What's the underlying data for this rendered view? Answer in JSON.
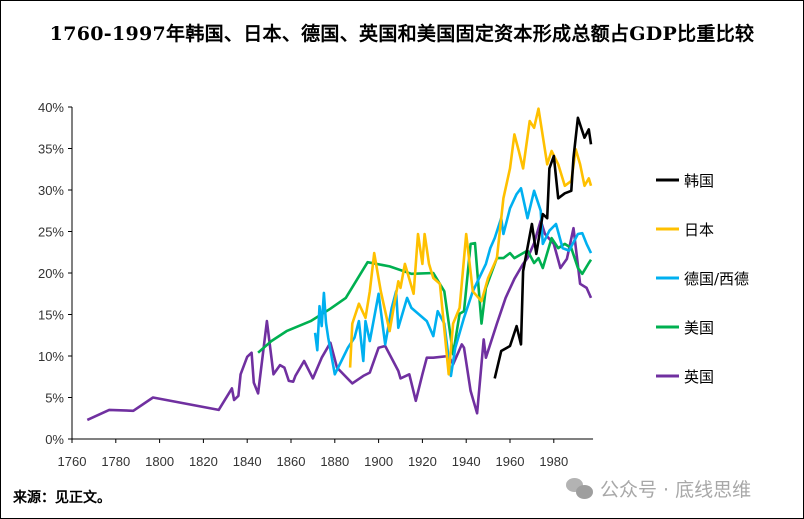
{
  "chart_data": {
    "type": "line",
    "title": "1760-1997年韩国、日本、德国、英国和美国固定资本形成总额占GDP比重比较",
    "xlabel": "",
    "ylabel": "",
    "xlim": [
      1760,
      1997
    ],
    "ylim": [
      0,
      40
    ],
    "x_ticks": [
      "1760",
      "1780",
      "1800",
      "1820",
      "1840",
      "1860",
      "1880",
      "1900",
      "1920",
      "1940",
      "1960",
      "1980"
    ],
    "y_ticks": [
      "0%",
      "5%",
      "10%",
      "15%",
      "20%",
      "25%",
      "30%",
      "35%",
      "40%"
    ],
    "grid": false,
    "legend_position": "right",
    "series": [
      {
        "name": "韩国",
        "color": "#000000",
        "points": [
          [
            1953,
            7.3
          ],
          [
            1956,
            10.6
          ],
          [
            1960,
            11.2
          ],
          [
            1963,
            13.6
          ],
          [
            1965,
            11.4
          ],
          [
            1966,
            20.2
          ],
          [
            1970,
            25.9
          ],
          [
            1972,
            22.3
          ],
          [
            1975,
            27.1
          ],
          [
            1977,
            26.6
          ],
          [
            1978,
            32.6
          ],
          [
            1980,
            34.1
          ],
          [
            1982,
            29.0
          ],
          [
            1985,
            29.6
          ],
          [
            1988,
            29.9
          ],
          [
            1989,
            33.9
          ],
          [
            1991,
            38.7
          ],
          [
            1994,
            36.3
          ],
          [
            1996,
            37.3
          ],
          [
            1997,
            35.5
          ]
        ]
      },
      {
        "name": "日本",
        "color": "#FFC000",
        "points": [
          [
            1887,
            8.6
          ],
          [
            1888,
            13.9
          ],
          [
            1891,
            16.3
          ],
          [
            1894,
            14.6
          ],
          [
            1896,
            17.8
          ],
          [
            1898,
            22.4
          ],
          [
            1901,
            17.8
          ],
          [
            1905,
            13.0
          ],
          [
            1909,
            19.0
          ],
          [
            1910,
            18.2
          ],
          [
            1912,
            21.1
          ],
          [
            1916,
            17.5
          ],
          [
            1918,
            24.7
          ],
          [
            1920,
            21.1
          ],
          [
            1921,
            24.7
          ],
          [
            1923,
            21.1
          ],
          [
            1925,
            19.4
          ],
          [
            1928,
            18.7
          ],
          [
            1932,
            7.8
          ],
          [
            1934,
            13.9
          ],
          [
            1937,
            15.8
          ],
          [
            1940,
            24.7
          ],
          [
            1943,
            17.8
          ],
          [
            1947,
            16.6
          ],
          [
            1950,
            19.4
          ],
          [
            1954,
            21.8
          ],
          [
            1957,
            29.0
          ],
          [
            1960,
            32.6
          ],
          [
            1962,
            36.7
          ],
          [
            1964,
            34.7
          ],
          [
            1966,
            32.6
          ],
          [
            1969,
            38.3
          ],
          [
            1971,
            37.5
          ],
          [
            1973,
            39.8
          ],
          [
            1977,
            33.1
          ],
          [
            1979,
            34.7
          ],
          [
            1982,
            33.1
          ],
          [
            1985,
            30.5
          ],
          [
            1988,
            31.1
          ],
          [
            1990,
            34.9
          ],
          [
            1992,
            33.1
          ],
          [
            1994,
            30.5
          ],
          [
            1996,
            31.4
          ],
          [
            1997,
            30.5
          ]
        ]
      },
      {
        "name": "德国/西德",
        "color": "#00B0F0",
        "points": [
          [
            1871,
            12.8
          ],
          [
            1872,
            10.7
          ],
          [
            1873,
            16.0
          ],
          [
            1874,
            13.6
          ],
          [
            1875,
            17.6
          ],
          [
            1876,
            14.0
          ],
          [
            1877,
            12.2
          ],
          [
            1880,
            7.8
          ],
          [
            1883,
            9.4
          ],
          [
            1886,
            11.0
          ],
          [
            1889,
            12.2
          ],
          [
            1891,
            14.2
          ],
          [
            1893,
            9.4
          ],
          [
            1894,
            14.2
          ],
          [
            1896,
            11.8
          ],
          [
            1900,
            17.5
          ],
          [
            1903,
            11.4
          ],
          [
            1906,
            15.8
          ],
          [
            1908,
            17.8
          ],
          [
            1909,
            13.4
          ],
          [
            1913,
            17.0
          ],
          [
            1915,
            15.8
          ],
          [
            1922,
            14.2
          ],
          [
            1925,
            12.4
          ],
          [
            1927,
            15.4
          ],
          [
            1930,
            13.9
          ],
          [
            1933,
            7.6
          ],
          [
            1935,
            11.0
          ],
          [
            1939,
            14.6
          ],
          [
            1943,
            17.8
          ],
          [
            1949,
            21.1
          ],
          [
            1951,
            23.0
          ],
          [
            1953,
            24.2
          ],
          [
            1956,
            26.6
          ],
          [
            1957,
            24.7
          ],
          [
            1960,
            27.8
          ],
          [
            1963,
            29.5
          ],
          [
            1965,
            30.2
          ],
          [
            1968,
            26.6
          ],
          [
            1971,
            29.9
          ],
          [
            1974,
            27.5
          ],
          [
            1975,
            23.5
          ],
          [
            1978,
            25.1
          ],
          [
            1981,
            25.9
          ],
          [
            1984,
            23.0
          ],
          [
            1987,
            22.7
          ],
          [
            1991,
            24.7
          ],
          [
            1993,
            24.8
          ],
          [
            1995,
            23.5
          ],
          [
            1997,
            22.4
          ]
        ]
      },
      {
        "name": "美国",
        "color": "#00B050",
        "points": [
          [
            1845,
            10.4
          ],
          [
            1851,
            11.8
          ],
          [
            1858,
            13.0
          ],
          [
            1869,
            14.2
          ],
          [
            1878,
            15.7
          ],
          [
            1885,
            17.0
          ],
          [
            1895,
            21.3
          ],
          [
            1905,
            20.8
          ],
          [
            1915,
            19.9
          ],
          [
            1925,
            20.0
          ],
          [
            1930,
            17.8
          ],
          [
            1934,
            10.2
          ],
          [
            1937,
            15.1
          ],
          [
            1939,
            15.4
          ],
          [
            1942,
            23.5
          ],
          [
            1944,
            23.6
          ],
          [
            1947,
            13.9
          ],
          [
            1949,
            18.2
          ],
          [
            1954,
            21.8
          ],
          [
            1957,
            21.8
          ],
          [
            1960,
            22.4
          ],
          [
            1962,
            21.8
          ],
          [
            1968,
            22.7
          ],
          [
            1971,
            21.2
          ],
          [
            1973,
            21.8
          ],
          [
            1975,
            20.6
          ],
          [
            1979,
            24.2
          ],
          [
            1982,
            23.0
          ],
          [
            1985,
            23.5
          ],
          [
            1988,
            23.0
          ],
          [
            1991,
            20.6
          ],
          [
            1993,
            19.9
          ],
          [
            1996,
            21.2
          ],
          [
            1997,
            21.6
          ]
        ]
      },
      {
        "name": "英国",
        "color": "#7030A0",
        "points": [
          [
            1767,
            2.3
          ],
          [
            1777,
            3.5
          ],
          [
            1788,
            3.4
          ],
          [
            1797,
            5.0
          ],
          [
            1827,
            3.5
          ],
          [
            1833,
            6.1
          ],
          [
            1834,
            4.7
          ],
          [
            1836,
            5.2
          ],
          [
            1837,
            7.8
          ],
          [
            1840,
            9.9
          ],
          [
            1842,
            10.4
          ],
          [
            1843,
            6.8
          ],
          [
            1845,
            5.5
          ],
          [
            1849,
            14.2
          ],
          [
            1852,
            7.8
          ],
          [
            1855,
            8.9
          ],
          [
            1857,
            8.6
          ],
          [
            1859,
            7.0
          ],
          [
            1861,
            6.9
          ],
          [
            1862,
            7.6
          ],
          [
            1866,
            9.4
          ],
          [
            1870,
            7.3
          ],
          [
            1874,
            9.8
          ],
          [
            1878,
            11.6
          ],
          [
            1881,
            8.6
          ],
          [
            1888,
            6.7
          ],
          [
            1893,
            7.6
          ],
          [
            1896,
            8.0
          ],
          [
            1900,
            11.0
          ],
          [
            1903,
            11.2
          ],
          [
            1909,
            8.2
          ],
          [
            1910,
            7.3
          ],
          [
            1914,
            7.8
          ],
          [
            1917,
            4.6
          ],
          [
            1920,
            7.8
          ],
          [
            1922,
            9.8
          ],
          [
            1925,
            9.8
          ],
          [
            1932,
            10.0
          ],
          [
            1934,
            9.0
          ],
          [
            1938,
            11.4
          ],
          [
            1939,
            11.0
          ],
          [
            1942,
            5.8
          ],
          [
            1945,
            3.1
          ],
          [
            1948,
            12.0
          ],
          [
            1949,
            9.8
          ],
          [
            1954,
            13.9
          ],
          [
            1958,
            17.0
          ],
          [
            1962,
            19.3
          ],
          [
            1966,
            21.1
          ],
          [
            1968,
            21.8
          ],
          [
            1971,
            23.6
          ],
          [
            1974,
            26.3
          ],
          [
            1976,
            24.7
          ],
          [
            1980,
            23.5
          ],
          [
            1983,
            20.6
          ],
          [
            1986,
            21.7
          ],
          [
            1989,
            25.4
          ],
          [
            1992,
            18.7
          ],
          [
            1995,
            18.2
          ],
          [
            1997,
            17.0
          ]
        ]
      }
    ]
  },
  "footer": {
    "source": "来源：见正文。",
    "watermark": "公众号 · 底线思维"
  }
}
